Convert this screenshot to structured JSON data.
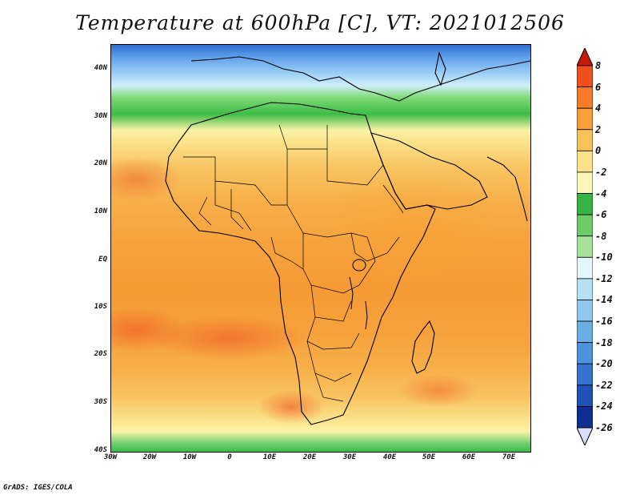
{
  "title": "Temperature at 600hPa [C], VT: 2021012506",
  "credit": "GrADS: IGES/COLA",
  "map": {
    "lat_ticks": [
      "40N",
      "30N",
      "20N",
      "10N",
      "EQ",
      "10S",
      "20S",
      "30S",
      "40S"
    ],
    "lon_ticks": [
      "30W",
      "20W",
      "10W",
      "0",
      "10E",
      "20E",
      "30E",
      "40E",
      "50E",
      "60E",
      "70E"
    ],
    "lat_range": [
      -40,
      45
    ],
    "lon_range": [
      -30,
      75
    ]
  },
  "colorbar": {
    "labels": [
      "8",
      "6",
      "4",
      "2",
      "0",
      "-2",
      "-4",
      "-6",
      "-8",
      "-10",
      "-12",
      "-14",
      "-16",
      "-18",
      "-20",
      "-22",
      "-24",
      "-26"
    ],
    "colors": [
      "#c81a0b",
      "#ee4f1d",
      "#f77a2a",
      "#f89f3a",
      "#f8c15a",
      "#fbe28a",
      "#fbf6b8",
      "#36b443",
      "#6ccb66",
      "#a6e39a",
      "#e2f7fb",
      "#b6e1f5",
      "#8fc8ef",
      "#6aaee6",
      "#4c92dd",
      "#3573cf",
      "#2052b5",
      "#0e2f8e",
      "#0a1a5e"
    ],
    "over_color": "#c81a0b",
    "under_color": "#dcdcff"
  }
}
